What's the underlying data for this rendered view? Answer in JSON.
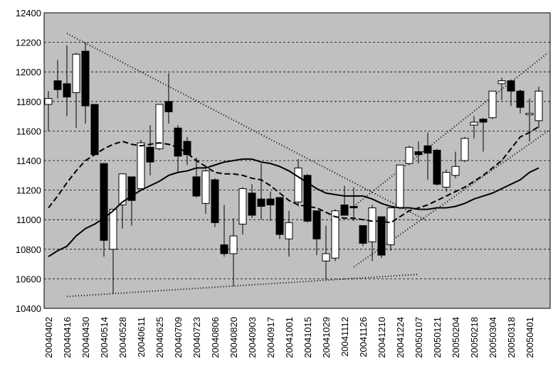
{
  "chart_data": {
    "type": "candlestick",
    "categories": [
      "20040402",
      null,
      "20040416",
      null,
      "20040430",
      null,
      "20040514",
      null,
      "20040528",
      null,
      "20040611",
      null,
      "20040625",
      null,
      "20040709",
      null,
      "20040723",
      null,
      "20040806",
      null,
      "20040820",
      null,
      "20040903",
      null,
      "20040917",
      null,
      "20041001",
      null,
      "20041015",
      null,
      "20041029",
      null,
      "20041112",
      null,
      "20041126",
      null,
      "20041210",
      null,
      "20041224",
      null,
      "20050107",
      null,
      "20050121",
      null,
      "20050204",
      null,
      "20050218",
      null,
      "20050304",
      null,
      "20050318",
      null,
      "20050401",
      null
    ],
    "open": [
      11780,
      11940,
      11920,
      11860,
      12140,
      11780,
      11380,
      10800,
      11100,
      11290,
      11210,
      11490,
      11480,
      11800,
      11620,
      11530,
      11290,
      11110,
      11270,
      10830,
      10770,
      10970,
      11180,
      11140,
      11140,
      11150,
      10870,
      11120,
      11300,
      11060,
      10720,
      10740,
      11100,
      11090,
      10960,
      10850,
      11020,
      10830,
      11080,
      11380,
      11460,
      11500,
      11470,
      11220,
      11300,
      11400,
      11640,
      11680,
      11690,
      11920,
      11940,
      11870,
      11710,
      11670
    ],
    "high": [
      11870,
      12080,
      12180,
      12130,
      12200,
      11780,
      11380,
      11070,
      11310,
      11290,
      11540,
      11640,
      11780,
      11990,
      11640,
      11560,
      11420,
      11340,
      11280,
      11100,
      11010,
      11220,
      11240,
      11380,
      11190,
      11150,
      11060,
      11410,
      11310,
      11060,
      10960,
      11070,
      11230,
      11220,
      10960,
      11100,
      11020,
      11080,
      11370,
      11500,
      11530,
      11590,
      11480,
      11340,
      11460,
      11560,
      11700,
      11690,
      11870,
      11960,
      11950,
      11880,
      11820,
      11900
    ],
    "low": [
      11600,
      11820,
      11700,
      11620,
      11650,
      11440,
      10750,
      10500,
      10940,
      10960,
      11210,
      11300,
      11470,
      11650,
      11320,
      11370,
      11150,
      11040,
      10950,
      10750,
      10550,
      10900,
      11010,
      11000,
      10990,
      10870,
      10750,
      11090,
      10980,
      10760,
      10590,
      10720,
      11030,
      10990,
      10820,
      10720,
      10740,
      10790,
      11070,
      11370,
      11380,
      11270,
      11230,
      11190,
      11280,
      11390,
      11550,
      11460,
      11680,
      11810,
      11770,
      11720,
      11530,
      11620
    ],
    "close": [
      11820,
      11880,
      11830,
      12120,
      11770,
      11440,
      10860,
      11070,
      11310,
      11130,
      11520,
      11390,
      11780,
      11730,
      11430,
      11440,
      11160,
      11330,
      10980,
      10770,
      10890,
      11210,
      11030,
      11090,
      11100,
      10900,
      10980,
      11350,
      10990,
      10870,
      10770,
      11060,
      11030,
      11080,
      10840,
      11080,
      10760,
      11080,
      11370,
      11490,
      11440,
      11450,
      11240,
      11320,
      11360,
      11550,
      11660,
      11660,
      11870,
      11940,
      11870,
      11760,
      11720,
      11870
    ],
    "series": [
      {
        "name": null,
        "style": "dashed",
        "color": "#000000",
        "values": [
          11080,
          11160,
          11250,
          11330,
          11400,
          11440,
          11480,
          11510,
          11530,
          11510,
          11500,
          11510,
          11520,
          11510,
          11490,
          11450,
          11400,
          11360,
          11320,
          11310,
          11310,
          11300,
          11280,
          11270,
          11230,
          11180,
          11130,
          11100,
          11090,
          11080,
          11050,
          11020,
          11010,
          11010,
          11000,
          10990,
          10990,
          10980,
          11020,
          11060,
          11080,
          11100,
          11130,
          11160,
          11190,
          11220,
          11260,
          11300,
          11350,
          11400,
          11480,
          11560,
          11590,
          11630
        ]
      },
      {
        "name": null,
        "style": "solid",
        "color": "#000000",
        "values": [
          10750,
          10790,
          10820,
          10890,
          10940,
          10970,
          11010,
          11060,
          11120,
          11160,
          11200,
          11230,
          11260,
          11300,
          11320,
          11330,
          11350,
          11350,
          11370,
          11390,
          11400,
          11410,
          11410,
          11390,
          11380,
          11360,
          11330,
          11290,
          11250,
          11210,
          11180,
          11170,
          11160,
          11160,
          11160,
          11140,
          11110,
          11090,
          11080,
          11080,
          11070,
          11070,
          11080,
          11080,
          11090,
          11110,
          11140,
          11160,
          11180,
          11210,
          11240,
          11270,
          11320,
          11350
        ]
      }
    ],
    "trendlines": [
      {
        "x": [
          2,
          41
        ],
        "y": [
          12260,
          10990
        ]
      },
      {
        "x": [
          2,
          40
        ],
        "y": [
          10480,
          10630
        ]
      },
      {
        "x": [
          33,
          54
        ],
        "y": [
          11090,
          12130
        ]
      },
      {
        "x": [
          33,
          54
        ],
        "y": [
          10680,
          11600
        ]
      }
    ],
    "up_color": "#ffffff",
    "down_color": "#000000",
    "plot_background": "#c0c0c0",
    "ylim": [
      10400,
      12400
    ],
    "yticks": [
      10400,
      10600,
      10800,
      11000,
      11200,
      11400,
      11600,
      11800,
      12000,
      12200,
      12400
    ],
    "grid": true
  }
}
